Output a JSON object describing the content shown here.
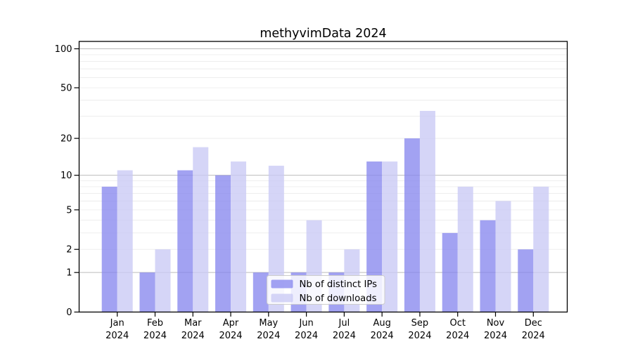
{
  "title": "methyvimData 2024",
  "chart_data": {
    "type": "bar",
    "title": "methyvimData 2024",
    "categories": [
      "Jan",
      "Feb",
      "Mar",
      "Apr",
      "May",
      "Jun",
      "Jul",
      "Aug",
      "Sep",
      "Oct",
      "Nov",
      "Dec"
    ],
    "year_label": "2024",
    "series": [
      {
        "name": "Nb of distinct IPs",
        "color": "#8888ee",
        "values": [
          8,
          1,
          11,
          10,
          1,
          1,
          1,
          13,
          20,
          3,
          4,
          2
        ]
      },
      {
        "name": "Nb of downloads",
        "color": "#c9c9f5",
        "values": [
          11,
          2,
          17,
          13,
          12,
          4,
          2,
          13,
          33,
          8,
          6,
          8
        ]
      }
    ],
    "y_ticks": [
      0,
      1,
      2,
      5,
      10,
      20,
      50,
      100
    ],
    "y_scale": "log10(value+1)",
    "ylim": [
      0,
      115
    ],
    "grid": true,
    "minor_gridlines": [
      2,
      3,
      4,
      5,
      6,
      7,
      8,
      9,
      20,
      30,
      40,
      50,
      60,
      70,
      80,
      90
    ],
    "major_gridlines": [
      1,
      10,
      100
    ],
    "legend_position": "inside-bottom-center",
    "colors": {
      "bar_ips_visible": "#a2a2f0",
      "bar_downloads_visible": "#d6d6f8",
      "major_grid": "#bbbbbb",
      "minor_grid": "#ececec",
      "frame": "#000000",
      "legend_border": "#cccccc"
    }
  }
}
